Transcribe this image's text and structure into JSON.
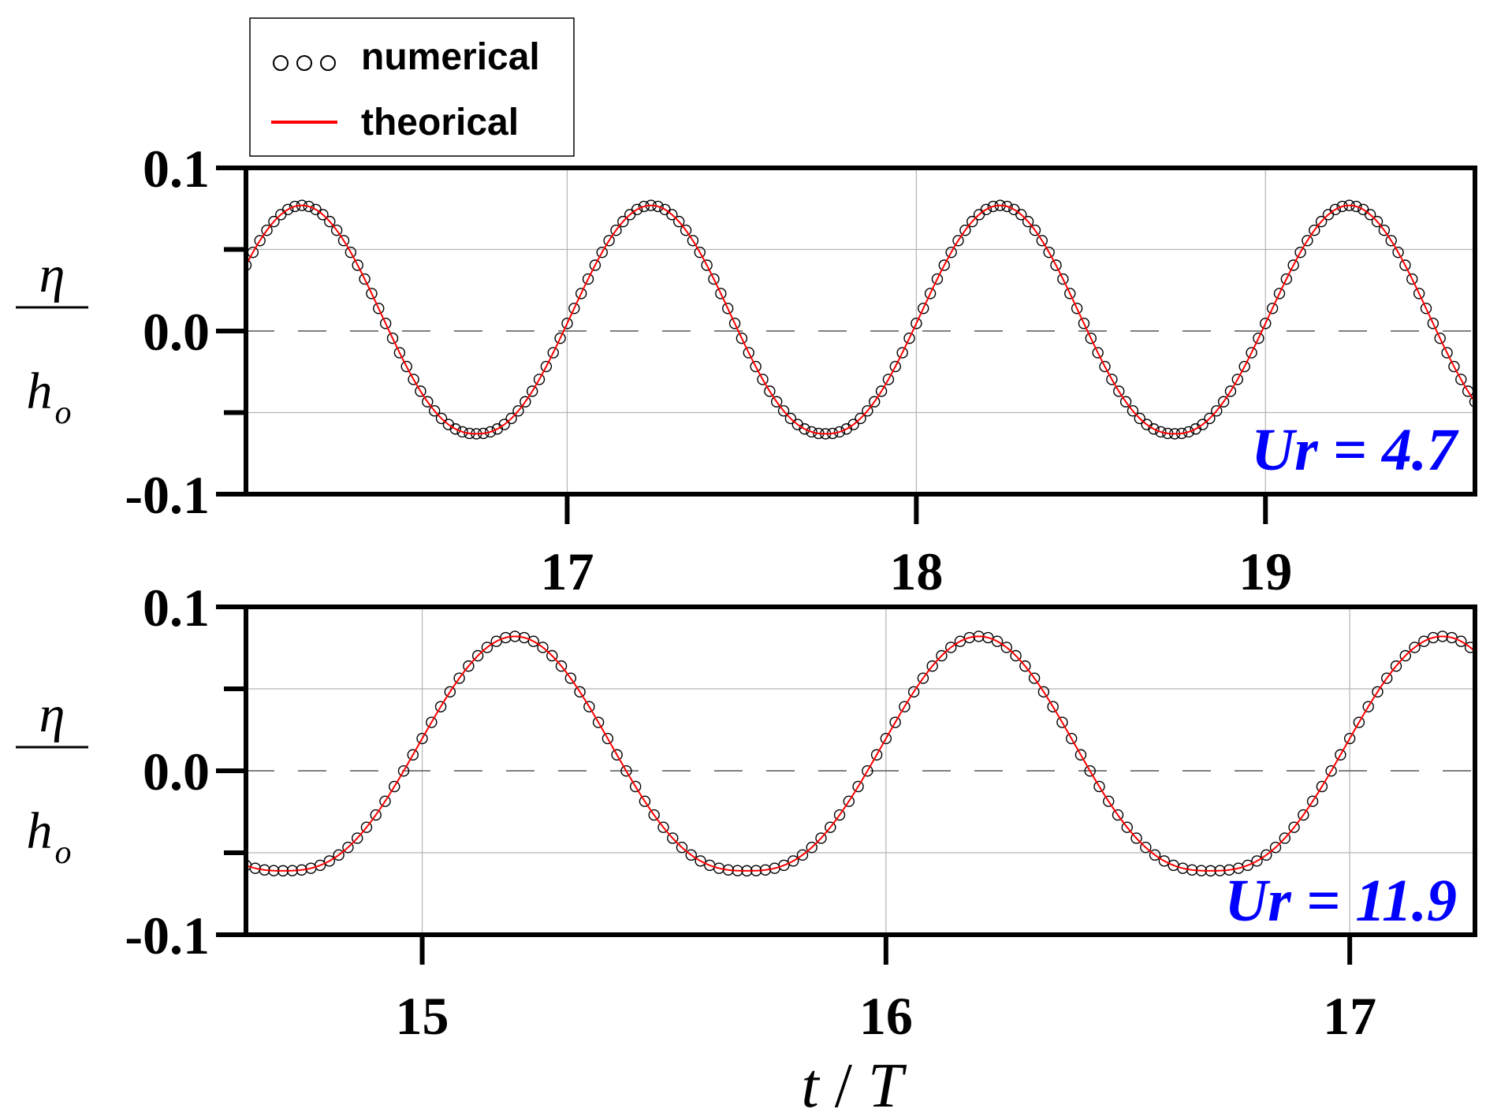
{
  "chart_data": [
    {
      "type": "line",
      "xlim": [
        16.08,
        19.6
      ],
      "ylim": [
        -0.1,
        0.1
      ],
      "x_ticks": [
        17,
        18,
        19
      ],
      "x_tick_labels": [
        "17",
        "18",
        "19"
      ],
      "y_ticks": [
        -0.1,
        0.0,
        0.1
      ],
      "y_tick_labels": [
        "-0.1",
        "0.0",
        "0.1"
      ],
      "grid": true,
      "zero_line": "dashed",
      "y_label": {
        "numerator": "η",
        "denominator": "h",
        "subscript": "o"
      },
      "annotation": "Ur = 4.7",
      "annotation_color": "#0000ff",
      "wave": {
        "period": 1.0,
        "crest_time": 16.24,
        "crest": 0.077,
        "trough": -0.063,
        "shape_exponent": 1.15
      },
      "series": [
        {
          "name": "numerical",
          "style": "open-circle-markers",
          "color": "#000000",
          "sample_step": 0.02
        },
        {
          "name": "theorical",
          "style": "line",
          "color": "#ff0000"
        }
      ]
    },
    {
      "type": "line",
      "xlim": [
        14.62,
        17.27
      ],
      "ylim": [
        -0.1,
        0.1
      ],
      "x_ticks": [
        15,
        16,
        17
      ],
      "x_tick_labels": [
        "15",
        "16",
        "17"
      ],
      "y_ticks": [
        -0.1,
        0.0,
        0.1
      ],
      "y_tick_labels": [
        "-0.1",
        "0.0",
        "0.1"
      ],
      "grid": true,
      "zero_line": "dashed",
      "y_label": {
        "numerator": "η",
        "denominator": "h",
        "subscript": "o"
      },
      "x_label": {
        "left": "t",
        "separator": " / ",
        "right": "T"
      },
      "annotation": "Ur = 11.9",
      "annotation_color": "#0000ff",
      "wave": {
        "period": 1.0,
        "crest_time": 15.2,
        "crest": 0.082,
        "trough": -0.061,
        "shape_exponent": 1.35
      },
      "series": [
        {
          "name": "numerical",
          "style": "open-circle-markers",
          "color": "#000000",
          "sample_step": 0.02
        },
        {
          "name": "theorical",
          "style": "line",
          "color": "#ff0000"
        }
      ]
    }
  ],
  "legend": {
    "placement": "top-left",
    "entries": [
      {
        "label": "numerical",
        "marker": "ooo"
      },
      {
        "label": "theorical",
        "marker": "line"
      }
    ]
  }
}
